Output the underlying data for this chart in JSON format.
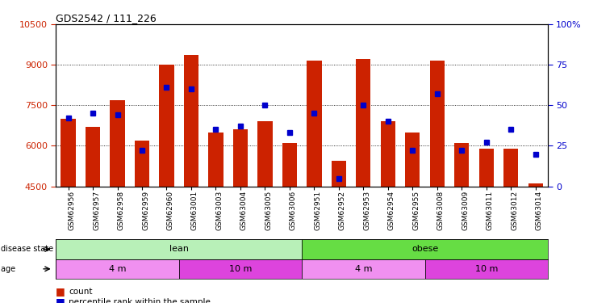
{
  "title": "GDS2542 / 111_226",
  "samples": [
    "GSM62956",
    "GSM62957",
    "GSM62958",
    "GSM62959",
    "GSM62960",
    "GSM63001",
    "GSM63003",
    "GSM63004",
    "GSM63005",
    "GSM63006",
    "GSM62951",
    "GSM62952",
    "GSM62953",
    "GSM62954",
    "GSM62955",
    "GSM63008",
    "GSM63009",
    "GSM63011",
    "GSM63012",
    "GSM63014"
  ],
  "counts": [
    7000,
    6700,
    7700,
    6200,
    9000,
    9350,
    6500,
    6600,
    6900,
    6100,
    9150,
    5450,
    9200,
    6900,
    6500,
    9150,
    6100,
    5900,
    5900,
    4600
  ],
  "percentiles": [
    42,
    45,
    44,
    22,
    61,
    60,
    35,
    37,
    50,
    33,
    45,
    5,
    50,
    40,
    22,
    57,
    22,
    27,
    35,
    20
  ],
  "ymin": 4500,
  "ymax": 10500,
  "yticks_left": [
    4500,
    6000,
    7500,
    9000,
    10500
  ],
  "yticks_right": [
    0,
    25,
    50,
    75,
    100
  ],
  "disease_state_groups": [
    {
      "label": "lean",
      "start": 0,
      "end": 10,
      "color": "#b8f0b8"
    },
    {
      "label": "obese",
      "start": 10,
      "end": 20,
      "color": "#66dd44"
    }
  ],
  "age_groups": [
    {
      "label": "4 m",
      "start": 0,
      "end": 5,
      "color": "#f090f0"
    },
    {
      "label": "10 m",
      "start": 5,
      "end": 10,
      "color": "#dd44dd"
    },
    {
      "label": "4 m",
      "start": 10,
      "end": 15,
      "color": "#f090f0"
    },
    {
      "label": "10 m",
      "start": 15,
      "end": 20,
      "color": "#dd44dd"
    }
  ],
  "bar_color": "#cc2200",
  "dot_color": "#0000cc",
  "label_left_color": "#cc2200",
  "label_right_color": "#0000cc"
}
